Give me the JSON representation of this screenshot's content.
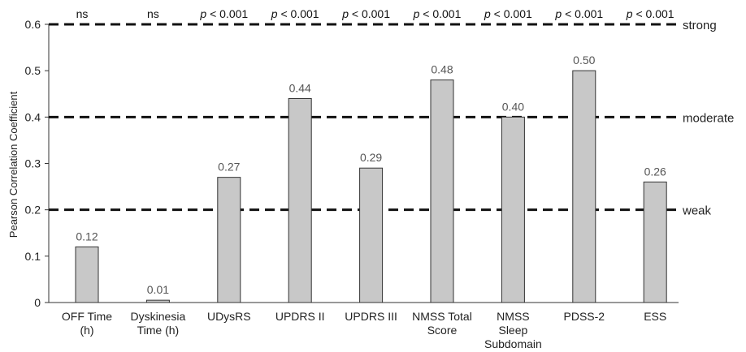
{
  "chart_data": {
    "type": "bar",
    "ylabel": "Pearson Correlation Coefficient",
    "ylim": [
      0,
      0.6
    ],
    "yticks": [
      "0",
      "0.1",
      "0.2",
      "0.3",
      "0.4",
      "0.5",
      "0.6"
    ],
    "grid": false,
    "bar_color": "#c8c8c8",
    "categories": [
      [
        "OFF Time",
        "(h)"
      ],
      [
        "Dyskinesia",
        "Time (h)"
      ],
      [
        "UDysRS"
      ],
      [
        "UPDRS II"
      ],
      [
        "UPDRS III"
      ],
      [
        "NMSS Total",
        "Score"
      ],
      [
        "NMSS",
        "Sleep",
        "Subdomain"
      ],
      [
        "PDSS-2"
      ],
      [
        "ESS"
      ]
    ],
    "values": [
      0.12,
      0.005,
      0.27,
      0.44,
      0.29,
      0.48,
      0.4,
      0.5,
      0.26
    ],
    "value_labels": [
      "0.12",
      "0.01",
      "0.27",
      "0.44",
      "0.29",
      "0.48",
      "0.40",
      "0.50",
      "0.26"
    ],
    "significance": [
      "ns",
      "ns",
      "p < 0.001",
      "p < 0.001",
      "p < 0.001",
      "p < 0.001",
      "p < 0.001",
      "p < 0.001",
      "p < 0.001"
    ],
    "thresholds": [
      {
        "label": "weak",
        "value": 0.2
      },
      {
        "label": "moderate",
        "value": 0.4
      },
      {
        "label": "strong",
        "value": 0.6
      }
    ]
  }
}
